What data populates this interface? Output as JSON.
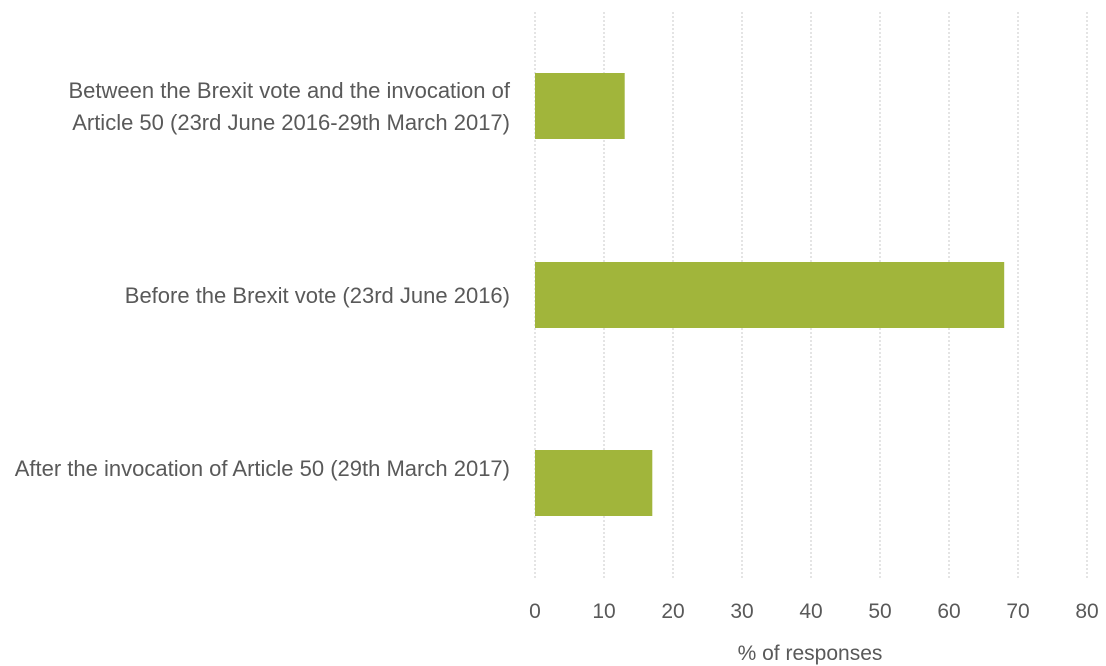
{
  "chart_data": {
    "type": "bar",
    "orientation": "horizontal",
    "categories": [
      "Between the Brexit vote and the invocation of Article 50 (23rd June 2016-29th March 2017)",
      "Before the Brexit vote (23rd June 2016)",
      "After the invocation of Article 50 (29th March 2017)"
    ],
    "values": [
      13,
      68,
      17
    ],
    "xlabel": "% of responses",
    "ylabel": "",
    "xlim": [
      0,
      80
    ],
    "xticks": [
      "0",
      "10",
      "20",
      "30",
      "40",
      "50",
      "60",
      "70",
      "80"
    ],
    "grid": true,
    "bar_color": "#a1b53b"
  }
}
